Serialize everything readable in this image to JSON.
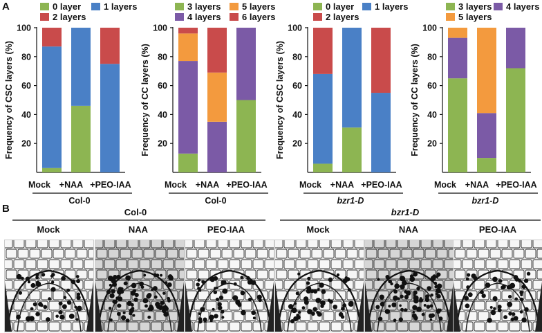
{
  "panel_labels": {
    "a": "A",
    "b": "B"
  },
  "colors": {
    "green": "#8db552",
    "blue": "#4a80c6",
    "red": "#c94b4b",
    "orange": "#f39a3e",
    "purple": "#7b5aa6"
  },
  "chart_data": [
    {
      "type": "bar",
      "stacked": true,
      "ylabel": "Frequency of CSC layers (%)",
      "ylim": [
        0,
        100
      ],
      "yticks": [
        "20",
        "40",
        "60",
        "80",
        "100"
      ],
      "categories": [
        "Mock",
        "+NAA",
        "+PEO-IAA"
      ],
      "group": "Col-0",
      "group_italic": false,
      "legend": [
        {
          "name": "0 layer",
          "color": "green"
        },
        {
          "name": "1 layers",
          "color": "blue"
        },
        {
          "name": "2 layers",
          "color": "red"
        }
      ],
      "series": [
        {
          "name": "0 layer",
          "color": "green",
          "values": [
            3,
            46,
            0
          ]
        },
        {
          "name": "1 layers",
          "color": "blue",
          "values": [
            84,
            54,
            75
          ]
        },
        {
          "name": "2 layers",
          "color": "red",
          "values": [
            13,
            0,
            25
          ]
        }
      ]
    },
    {
      "type": "bar",
      "stacked": true,
      "ylabel": "Frequency of CC layers (%)",
      "ylim": [
        0,
        100
      ],
      "yticks": [
        "20",
        "40",
        "60",
        "80",
        "100"
      ],
      "categories": [
        "Mock",
        "+NAA",
        "+PEO-IAA"
      ],
      "group": "Col-0",
      "group_italic": false,
      "legend": [
        {
          "name": "3 layers",
          "color": "green"
        },
        {
          "name": "5 layers",
          "color": "orange"
        },
        {
          "name": "4 layers",
          "color": "purple"
        },
        {
          "name": "6 layers",
          "color": "red"
        }
      ],
      "series": [
        {
          "name": "3 layers",
          "color": "green",
          "values": [
            13,
            0,
            50
          ]
        },
        {
          "name": "4 layers",
          "color": "purple",
          "values": [
            64,
            35,
            50
          ]
        },
        {
          "name": "5 layers",
          "color": "orange",
          "values": [
            19,
            34,
            0
          ]
        },
        {
          "name": "6 layers",
          "color": "red",
          "values": [
            4,
            31,
            0
          ]
        }
      ]
    },
    {
      "type": "bar",
      "stacked": true,
      "ylabel": "Frequency of CSC layers (%)",
      "ylim": [
        0,
        100
      ],
      "yticks": [
        "20",
        "40",
        "60",
        "80",
        "100"
      ],
      "categories": [
        "Mock",
        "+NAA",
        "+PEO-IAA"
      ],
      "group": "bzr1-D",
      "group_italic": true,
      "legend": [
        {
          "name": "0 layer",
          "color": "green"
        },
        {
          "name": "1 layers",
          "color": "blue"
        },
        {
          "name": "2 layers",
          "color": "red"
        }
      ],
      "series": [
        {
          "name": "0 layer",
          "color": "green",
          "values": [
            6,
            31,
            0
          ]
        },
        {
          "name": "1 layers",
          "color": "blue",
          "values": [
            62,
            69,
            55
          ]
        },
        {
          "name": "2 layers",
          "color": "red",
          "values": [
            32,
            0,
            45
          ]
        }
      ]
    },
    {
      "type": "bar",
      "stacked": true,
      "ylabel": "Frequency of CC layers (%)",
      "ylim": [
        0,
        100
      ],
      "yticks": [
        "20",
        "40",
        "60",
        "80",
        "100"
      ],
      "categories": [
        "Mock",
        "+NAA",
        "+PEO-IAA"
      ],
      "group": "bzr1-D",
      "group_italic": true,
      "legend": [
        {
          "name": "3 layers",
          "color": "green"
        },
        {
          "name": "4 layers",
          "color": "purple"
        },
        {
          "name": "5 layers",
          "color": "orange"
        }
      ],
      "series": [
        {
          "name": "3 layers",
          "color": "green",
          "values": [
            65,
            10,
            72
          ]
        },
        {
          "name": "4 layers",
          "color": "purple",
          "values": [
            28,
            31,
            28
          ]
        },
        {
          "name": "5 layers",
          "color": "orange",
          "values": [
            7,
            59,
            0
          ]
        }
      ]
    }
  ],
  "panel_b": {
    "groups": [
      {
        "name": "Col-0",
        "italic": false
      },
      {
        "name": "bzr1-D",
        "italic": true
      }
    ],
    "columns": [
      "Mock",
      "NAA",
      "PEO-IAA",
      "Mock",
      "NAA",
      "PEO-IAA"
    ]
  }
}
